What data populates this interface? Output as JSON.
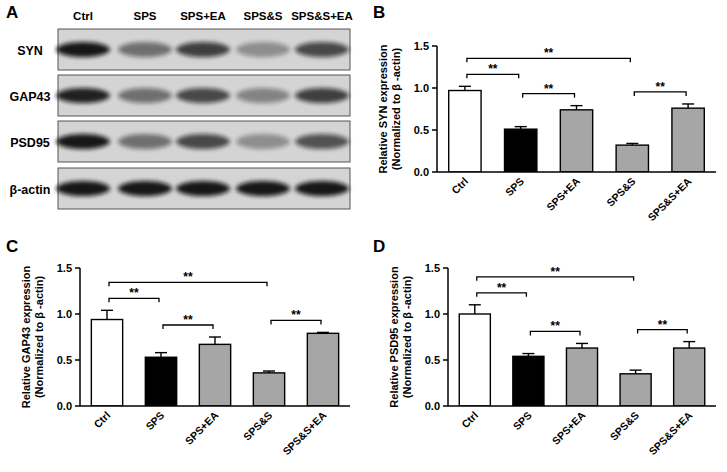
{
  "blot": {
    "title": "A",
    "lanes": [
      "Ctrl",
      "SPS",
      "SPS+EA",
      "SPS&S",
      "SPS&S+EA"
    ],
    "rows": [
      {
        "label": "SYN",
        "band_intensity": [
          0.95,
          0.5,
          0.75,
          0.35,
          0.7
        ]
      },
      {
        "label": "GAP43",
        "band_intensity": [
          0.9,
          0.5,
          0.7,
          0.4,
          0.75
        ]
      },
      {
        "label": "PSD95",
        "band_intensity": [
          0.95,
          0.5,
          0.7,
          0.35,
          0.65
        ]
      },
      {
        "label": "β-actin",
        "band_intensity": [
          0.95,
          0.95,
          0.95,
          0.95,
          0.95
        ]
      }
    ]
  },
  "chart_data": [
    {
      "type": "bar",
      "title": "B",
      "y_label": [
        "Relative SYN expression",
        "(Normalized to β -actin)"
      ],
      "categories": [
        "Ctrl",
        "SPS",
        "SPS+EA",
        "SPS&S",
        "SPS&S+EA"
      ],
      "values": [
        0.97,
        0.51,
        0.74,
        0.32,
        0.76
      ],
      "errors": [
        0.05,
        0.03,
        0.05,
        0.02,
        0.05
      ],
      "colors": [
        "#ffffff",
        "#000000",
        "#a6a6a6",
        "#a6a6a6",
        "#a6a6a6"
      ],
      "ylim": [
        0,
        1.5
      ],
      "yticks": [
        {
          "value": 0,
          "label": "0.0"
        },
        {
          "value": 0.5,
          "label": "0.5"
        },
        {
          "value": 1,
          "label": "1.0"
        },
        {
          "value": 1.5,
          "label": "1.5"
        }
      ],
      "annotations": [
        {
          "from": 0,
          "to": 1,
          "label": "**"
        },
        {
          "from": 1,
          "to": 2,
          "label": "**"
        },
        {
          "from": 0,
          "to": 3,
          "label": "**"
        },
        {
          "from": 3,
          "to": 4,
          "label": "**"
        }
      ]
    },
    {
      "type": "bar",
      "title": "C",
      "y_label": [
        "Relative GAP43 expression",
        "(Normalized to β -actin)"
      ],
      "categories": [
        "Ctrl",
        "SPS",
        "SPS+EA",
        "SPS&S",
        "SPS&S+EA"
      ],
      "values": [
        0.94,
        0.53,
        0.67,
        0.36,
        0.79
      ],
      "errors": [
        0.1,
        0.05,
        0.08,
        0.02,
        0.01
      ],
      "colors": [
        "#ffffff",
        "#000000",
        "#a6a6a6",
        "#a6a6a6",
        "#a6a6a6"
      ],
      "ylim": [
        0,
        1.5
      ],
      "yticks": [
        {
          "value": 0,
          "label": "0.0"
        },
        {
          "value": 0.5,
          "label": "0.5"
        },
        {
          "value": 1,
          "label": "1.0"
        },
        {
          "value": 1.5,
          "label": "1.5"
        }
      ],
      "annotations": [
        {
          "from": 0,
          "to": 1,
          "label": "**"
        },
        {
          "from": 1,
          "to": 2,
          "label": "**"
        },
        {
          "from": 0,
          "to": 3,
          "label": "**"
        },
        {
          "from": 3,
          "to": 4,
          "label": "**"
        }
      ]
    },
    {
      "type": "bar",
      "title": "D",
      "y_label": [
        "Relative PSD95 expression",
        "(Normalized to β -actin)"
      ],
      "categories": [
        "Ctrl",
        "SPS",
        "SPS+EA",
        "SPS&S",
        "SPS&S+EA"
      ],
      "values": [
        1.0,
        0.54,
        0.63,
        0.35,
        0.63
      ],
      "errors": [
        0.1,
        0.03,
        0.05,
        0.04,
        0.07
      ],
      "colors": [
        "#ffffff",
        "#000000",
        "#a6a6a6",
        "#a6a6a6",
        "#a6a6a6"
      ],
      "ylim": [
        0,
        1.5
      ],
      "yticks": [
        {
          "value": 0,
          "label": "0.0"
        },
        {
          "value": 0.5,
          "label": "0.5"
        },
        {
          "value": 1,
          "label": "1.0"
        },
        {
          "value": 1.5,
          "label": "1.5"
        }
      ],
      "annotations": [
        {
          "from": 0,
          "to": 1,
          "label": "**"
        },
        {
          "from": 1,
          "to": 2,
          "label": "**"
        },
        {
          "from": 0,
          "to": 3,
          "label": "**"
        },
        {
          "from": 3,
          "to": 4,
          "label": "**"
        }
      ]
    }
  ]
}
